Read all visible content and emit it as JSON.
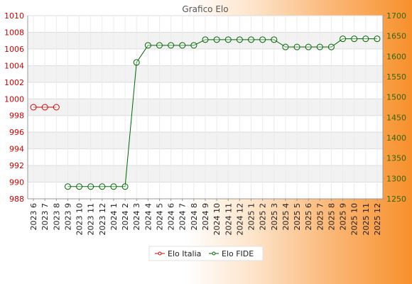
{
  "chart_data": {
    "type": "line",
    "title": "Grafico Elo",
    "categories": [
      "2023 6",
      "2023 7",
      "2023 8",
      "2023 9",
      "2023 10",
      "2023 11",
      "2023 12",
      "2024 1",
      "2024 2",
      "2024 3",
      "2024 4",
      "2024 5",
      "2024 6",
      "2024 7",
      "2024 8",
      "2024 9",
      "2024 10",
      "2024 11",
      "2024 12",
      "2025 1",
      "2025 2",
      "2025 3",
      "2025 4",
      "2025 5",
      "2025 6",
      "2025 7",
      "2025 8",
      "2025 9",
      "2025 10",
      "2025 11",
      "2025 12"
    ],
    "series": [
      {
        "name": "Elo Italia",
        "axis": "left",
        "color": "#cc0000",
        "values": [
          999,
          999,
          999,
          null,
          null,
          null,
          null,
          null,
          null,
          null,
          null,
          null,
          null,
          null,
          null,
          null,
          null,
          null,
          null,
          null,
          null,
          null,
          null,
          null,
          null,
          null,
          null,
          null,
          null,
          null,
          null
        ]
      },
      {
        "name": "Elo FIDE",
        "axis": "right",
        "color": "#006600",
        "values": [
          null,
          null,
          null,
          1280,
          1280,
          1280,
          1280,
          1280,
          1280,
          1585,
          1627,
          1627,
          1627,
          1627,
          1627,
          1641,
          1641,
          1641,
          1641,
          1641,
          1641,
          1641,
          1623,
          1623,
          1623,
          1623,
          1623,
          1643,
          1643,
          1643,
          1643
        ]
      }
    ],
    "y_left": {
      "range": [
        988,
        1010
      ],
      "ticks": [
        988,
        990,
        992,
        994,
        996,
        998,
        1000,
        1002,
        1004,
        1006,
        1008,
        1010
      ],
      "color": "#cc0000"
    },
    "y_right": {
      "range": [
        1250,
        1700
      ],
      "ticks": [
        1250,
        1300,
        1350,
        1400,
        1450,
        1500,
        1550,
        1600,
        1650,
        1700
      ],
      "color": "#336600"
    },
    "grid": true,
    "legend_position": "bottom"
  }
}
